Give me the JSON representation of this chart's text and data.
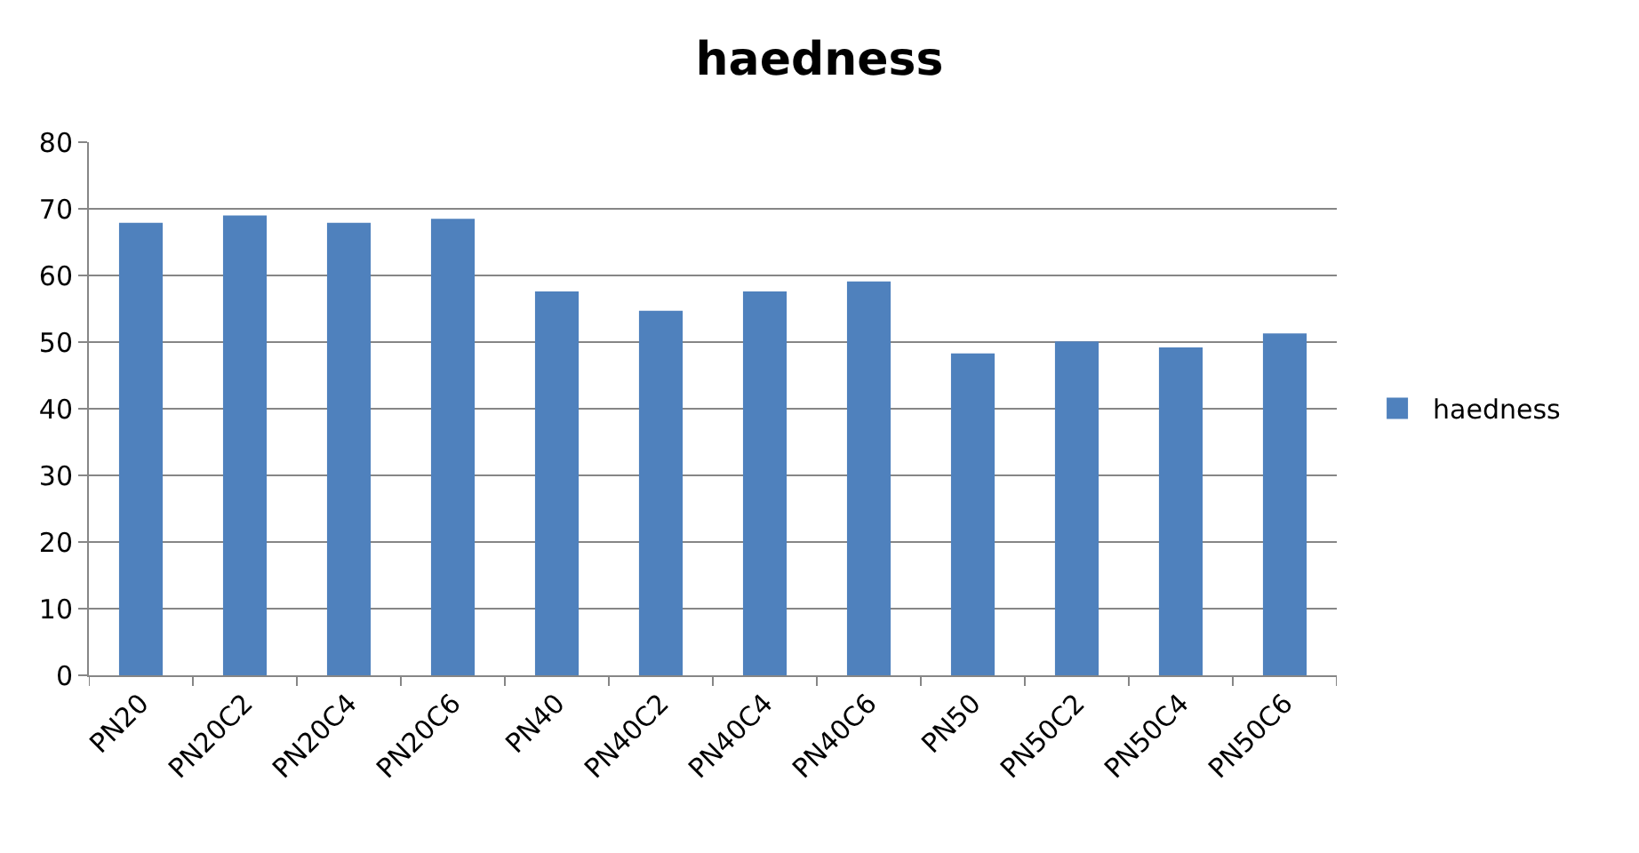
{
  "chart_data": {
    "type": "bar",
    "title": "haedness",
    "categories": [
      "PN20",
      "PN20C2",
      "PN20C4",
      "PN20C6",
      "PN40",
      "PN40C2",
      "PN40C4",
      "PN40C6",
      "PN50",
      "PN50C2",
      "PN50C4",
      "PN50C6"
    ],
    "series": [
      {
        "name": "haedness",
        "color": "#4f81bd",
        "values": [
          67.9,
          69,
          67.9,
          68.5,
          57.6,
          54.7,
          57.6,
          59.1,
          48.3,
          50.1,
          49.2,
          51.3
        ]
      }
    ],
    "ylim": [
      0,
      80
    ],
    "yticks": [
      0,
      10,
      20,
      30,
      40,
      50,
      60,
      70,
      80
    ],
    "grid": "y",
    "legend": "right"
  }
}
